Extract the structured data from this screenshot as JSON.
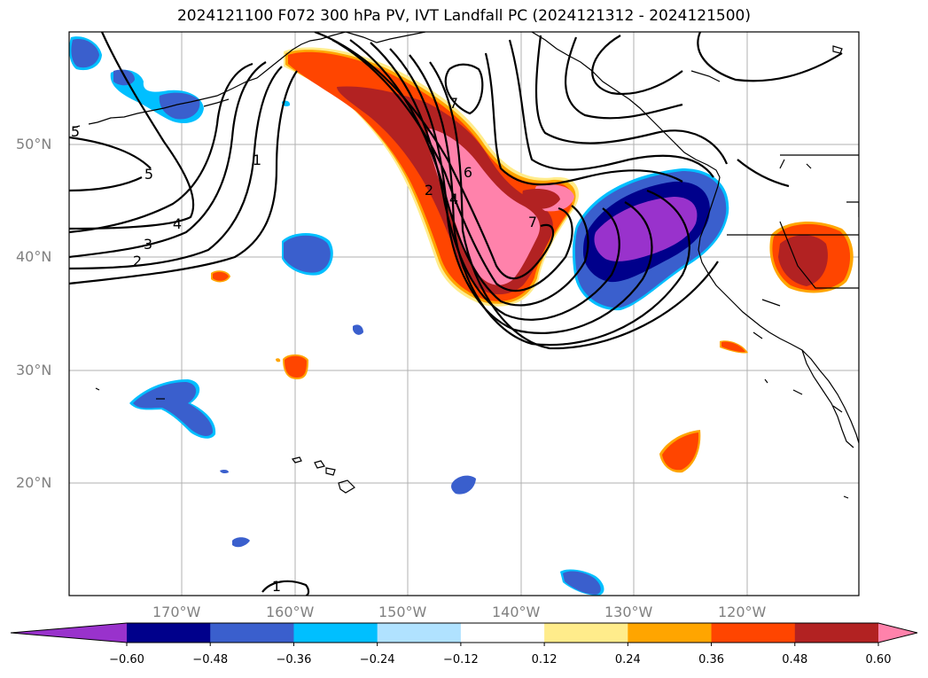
{
  "title": "2024121100 F072 300 hPa PV, IVT Landfall PC (2024121312 - 2024121500)",
  "map": {
    "lat_labels": [
      "50°N",
      "40°N",
      "30°N",
      "20°N"
    ],
    "lon_labels": [
      "170°W",
      "160°W",
      "150°W",
      "140°W",
      "130°W",
      "120°W"
    ],
    "contour_labels": [
      "1",
      "5",
      "4",
      "3",
      "2",
      "7",
      "6",
      "4",
      "2",
      "7",
      "1",
      "5"
    ]
  },
  "colorbar": {
    "tick_labels": [
      "−0.60",
      "−0.48",
      "−0.36",
      "−0.24",
      "−0.12",
      "0.12",
      "0.24",
      "0.36",
      "0.48",
      "0.60"
    ],
    "colors": [
      "#9932cc",
      "#00008b",
      "#3a5fcd",
      "#00bfff",
      "#b0e2ff",
      "#ffffff",
      "#ffec8b",
      "#ffa500",
      "#ff4500",
      "#b22222",
      "#ff82ab"
    ]
  }
}
